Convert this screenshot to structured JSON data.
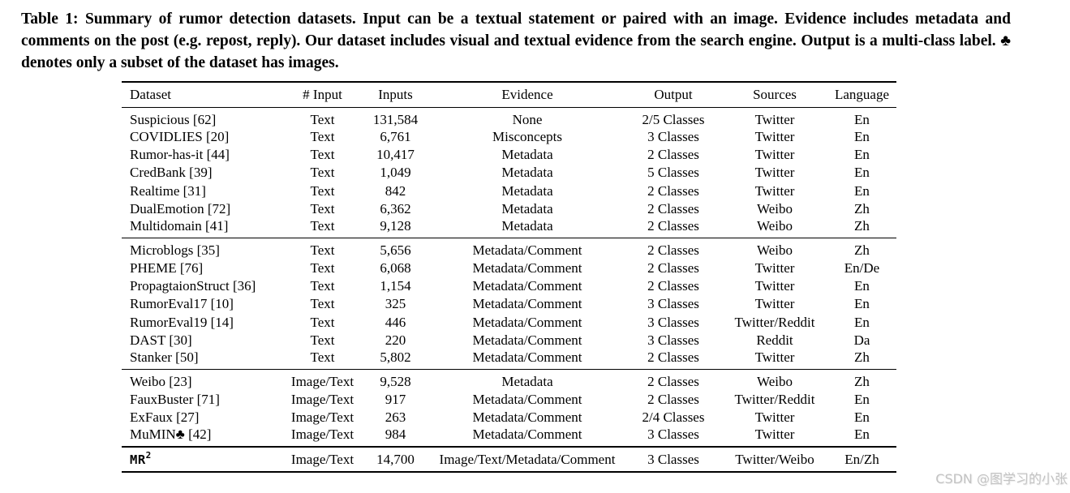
{
  "caption": {
    "label": "Table 1:",
    "text": "Summary of rumor detection datasets. Input can be a textual statement or paired with an image. Evidence includes metadata and comments on the post (e.g. repost, reply). Our dataset includes visual and textual evidence from the search engine. Output is a multi-class label. ♣ denotes only a subset of the dataset has images."
  },
  "table": {
    "columns": [
      "Dataset",
      "# Input",
      "Inputs",
      "Evidence",
      "Output",
      "Sources",
      "Language"
    ],
    "groups": [
      [
        [
          "Suspicious [62]",
          "Text",
          "131,584",
          "None",
          "2/5 Classes",
          "Twitter",
          "En"
        ],
        [
          "COVIDLIES [20]",
          "Text",
          "6,761",
          "Misconcepts",
          "3 Classes",
          "Twitter",
          "En"
        ],
        [
          "Rumor-has-it [44]",
          "Text",
          "10,417",
          "Metadata",
          "2 Classes",
          "Twitter",
          "En"
        ],
        [
          "CredBank [39]",
          "Text",
          "1,049",
          "Metadata",
          "5 Classes",
          "Twitter",
          "En"
        ],
        [
          "Realtime [31]",
          "Text",
          "842",
          "Metadata",
          "2 Classes",
          "Twitter",
          "En"
        ],
        [
          "DualEmotion [72]",
          "Text",
          "6,362",
          "Metadata",
          "2 Classes",
          "Weibo",
          "Zh"
        ],
        [
          "Multidomain [41]",
          "Text",
          "9,128",
          "Metadata",
          "2 Classes",
          "Weibo",
          "Zh"
        ]
      ],
      [
        [
          "Microblogs [35]",
          "Text",
          "5,656",
          "Metadata/Comment",
          "2 Classes",
          "Weibo",
          "Zh"
        ],
        [
          "PHEME [76]",
          "Text",
          "6,068",
          "Metadata/Comment",
          "2 Classes",
          "Twitter",
          "En/De"
        ],
        [
          "PropagtaionStruct [36]",
          "Text",
          "1,154",
          "Metadata/Comment",
          "2 Classes",
          "Twitter",
          "En"
        ],
        [
          "RumorEval17 [10]",
          "Text",
          "325",
          "Metadata/Comment",
          "3 Classes",
          "Twitter",
          "En"
        ],
        [
          "RumorEval19 [14]",
          "Text",
          "446",
          "Metadata/Comment",
          "3 Classes",
          "Twitter/Reddit",
          "En"
        ],
        [
          "DAST [30]",
          "Text",
          "220",
          "Metadata/Comment",
          "3 Classes",
          "Reddit",
          "Da"
        ],
        [
          "Stanker [50]",
          "Text",
          "5,802",
          "Metadata/Comment",
          "2 Classes",
          "Twitter",
          "Zh"
        ]
      ],
      [
        [
          "Weibo [23]",
          "Image/Text",
          "9,528",
          "Metadata",
          "2 Classes",
          "Weibo",
          "Zh"
        ],
        [
          "FauxBuster [71]",
          "Image/Text",
          "917",
          "Metadata/Comment",
          "2 Classes",
          "Twitter/Reddit",
          "En"
        ],
        [
          "ExFaux [27]",
          "Image/Text",
          "263",
          "Metadata/Comment",
          "2/4 Classes",
          "Twitter",
          "En"
        ],
        [
          "MuMIN♣ [42]",
          "Image/Text",
          "984",
          "Metadata/Comment",
          "3 Classes",
          "Twitter",
          "En"
        ]
      ]
    ],
    "final_row": {
      "name": "MR",
      "superscript": "2",
      "cells": [
        "Image/Text",
        "14,700",
        "Image/Text/Metadata/Comment",
        "3 Classes",
        "Twitter/Weibo",
        "En/Zh"
      ]
    }
  },
  "watermark": "CSDN @图学习的小张",
  "colors": {
    "text": "#000000",
    "background": "#ffffff",
    "watermark": "#c3c3c3"
  }
}
